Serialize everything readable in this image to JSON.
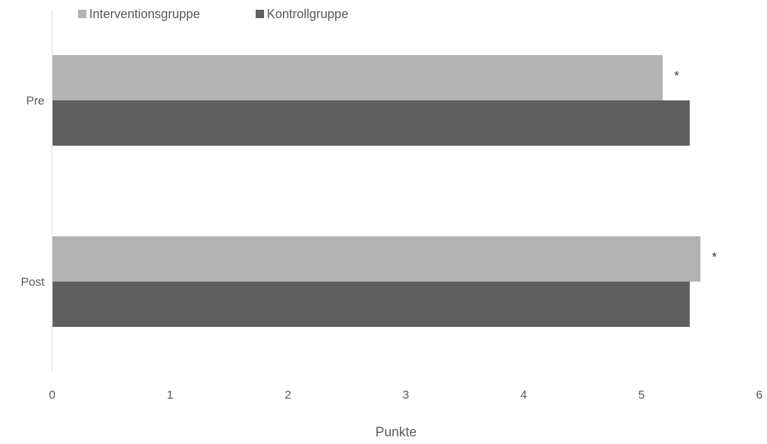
{
  "chart_data": {
    "type": "bar",
    "orientation": "horizontal",
    "categories": [
      "Pre",
      "Post"
    ],
    "series": [
      {
        "name": "Interventionsgruppe",
        "color": "#b3b3b3",
        "values": [
          5.18,
          5.5
        ]
      },
      {
        "name": "Kontrollgruppe",
        "color": "#5f5f5f",
        "values": [
          5.41,
          5.41
        ]
      }
    ],
    "annotations": [
      {
        "category": "Pre",
        "series": "Interventionsgruppe",
        "text": "*"
      },
      {
        "category": "Post",
        "series": "Interventionsgruppe",
        "text": "*"
      }
    ],
    "xlabel": "Punkte",
    "xlim": [
      0,
      6
    ],
    "xticks": [
      "0",
      "1",
      "2",
      "3",
      "4",
      "5",
      "6"
    ],
    "grid": false,
    "legend_position": "top-left"
  }
}
